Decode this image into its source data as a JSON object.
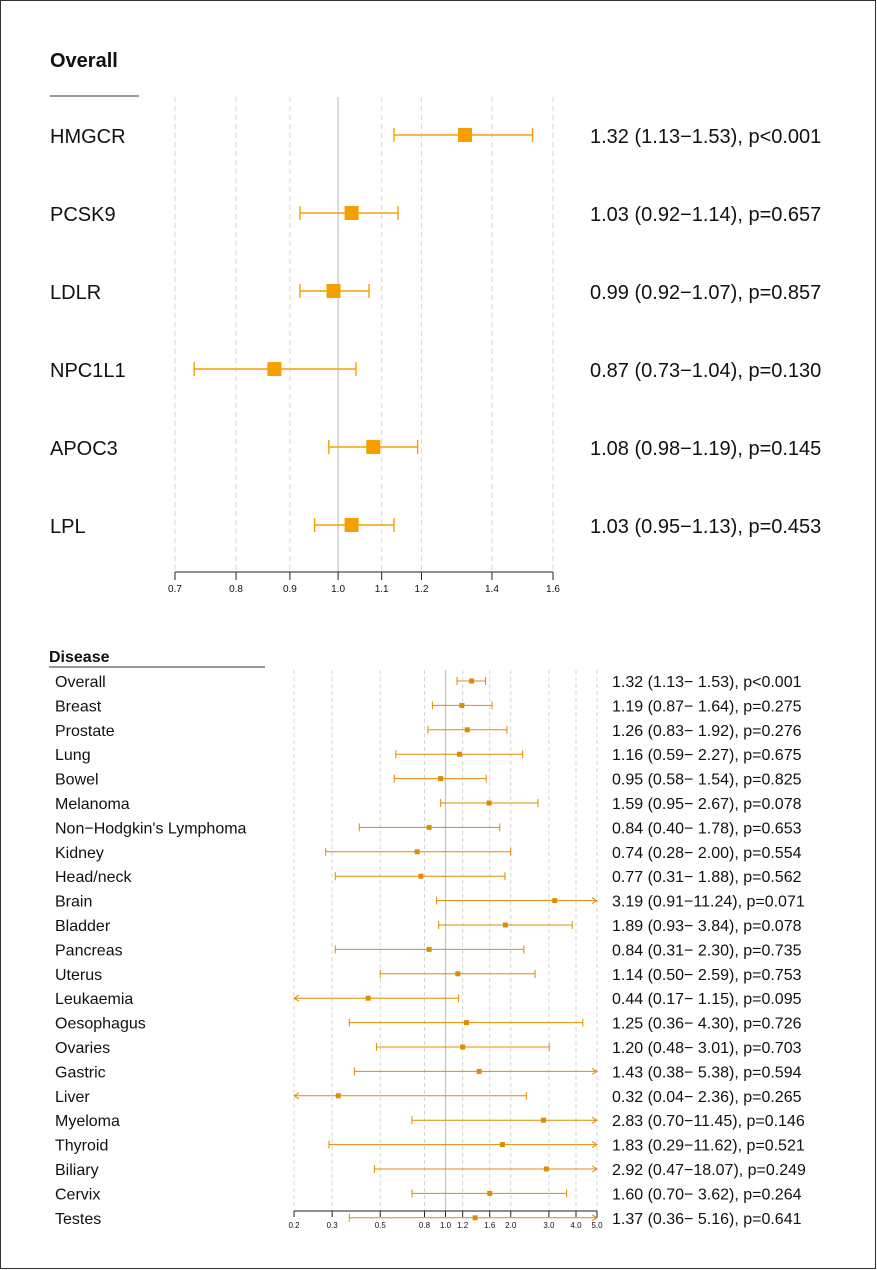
{
  "chart_data": [
    {
      "type": "forest",
      "title": "Overall",
      "scale": "log",
      "xlim": [
        0.7,
        1.6
      ],
      "ticks": [
        0.7,
        0.8,
        0.9,
        1.0,
        1.1,
        1.2,
        1.4,
        1.6
      ],
      "tick_labels": [
        "0.7",
        "0.8",
        "0.9",
        "1.0",
        "1.1",
        "1.2",
        "1.4",
        "1.6"
      ],
      "reference_line": 1.0,
      "marker_color": "#f5a000",
      "rows": [
        {
          "label": "HMGCR",
          "est": 1.32,
          "lo": 1.13,
          "hi": 1.53,
          "text": "1.32 (1.13−1.53), p<0.001"
        },
        {
          "label": "PCSK9",
          "est": 1.03,
          "lo": 0.92,
          "hi": 1.14,
          "text": "1.03 (0.92−1.14), p=0.657"
        },
        {
          "label": "LDLR",
          "est": 0.99,
          "lo": 0.92,
          "hi": 1.07,
          "text": "0.99 (0.92−1.07), p=0.857"
        },
        {
          "label": "NPC1L1",
          "est": 0.87,
          "lo": 0.73,
          "hi": 1.04,
          "text": "0.87 (0.73−1.04), p=0.130"
        },
        {
          "label": "APOC3",
          "est": 1.08,
          "lo": 0.98,
          "hi": 1.19,
          "text": "1.08 (0.98−1.19), p=0.145"
        },
        {
          "label": "LPL",
          "est": 1.03,
          "lo": 0.95,
          "hi": 1.13,
          "text": "1.03 (0.95−1.13), p=0.453"
        }
      ]
    },
    {
      "type": "forest",
      "title": "Disease",
      "scale": "log",
      "xlim": [
        0.2,
        5.0
      ],
      "ticks": [
        0.2,
        0.3,
        0.5,
        0.8,
        1.0,
        1.2,
        1.6,
        2.0,
        3.0,
        4.0,
        5.0
      ],
      "tick_labels": [
        "0.2",
        "0.3",
        "0.5",
        "0.8",
        "1.0",
        "1.2",
        "1.6",
        "2.0",
        "3.0",
        "4.0",
        "5.0"
      ],
      "reference_line": 1.0,
      "marker_color": "#e08c00",
      "rows": [
        {
          "label": "Overall",
          "est": 1.32,
          "lo": 1.13,
          "hi": 1.53,
          "text": "1.32 (1.13− 1.53), p<0.001"
        },
        {
          "label": "Breast",
          "est": 1.19,
          "lo": 0.87,
          "hi": 1.64,
          "text": "1.19 (0.87− 1.64), p=0.275"
        },
        {
          "label": "Prostate",
          "est": 1.26,
          "lo": 0.83,
          "hi": 1.92,
          "text": "1.26 (0.83− 1.92), p=0.276"
        },
        {
          "label": "Lung",
          "est": 1.16,
          "lo": 0.59,
          "hi": 2.27,
          "text": "1.16 (0.59− 2.27), p=0.675"
        },
        {
          "label": "Bowel",
          "est": 0.95,
          "lo": 0.58,
          "hi": 1.54,
          "text": "0.95 (0.58− 1.54), p=0.825"
        },
        {
          "label": "Melanoma",
          "est": 1.59,
          "lo": 0.95,
          "hi": 2.67,
          "text": "1.59 (0.95− 2.67), p=0.078"
        },
        {
          "label": "Non−Hodgkin's Lymphoma",
          "est": 0.84,
          "lo": 0.4,
          "hi": 1.78,
          "text": "0.84 (0.40− 1.78), p=0.653"
        },
        {
          "label": "Kidney",
          "est": 0.74,
          "lo": 0.28,
          "hi": 2.0,
          "text": "0.74 (0.28− 2.00), p=0.554"
        },
        {
          "label": "Head/neck",
          "est": 0.77,
          "lo": 0.31,
          "hi": 1.88,
          "text": "0.77 (0.31− 1.88), p=0.562"
        },
        {
          "label": "Brain",
          "est": 3.19,
          "lo": 0.91,
          "hi": 11.24,
          "text": "3.19 (0.91−11.24), p=0.071"
        },
        {
          "label": "Bladder",
          "est": 1.89,
          "lo": 0.93,
          "hi": 3.84,
          "text": "1.89 (0.93− 3.84), p=0.078"
        },
        {
          "label": "Pancreas",
          "est": 0.84,
          "lo": 0.31,
          "hi": 2.3,
          "text": "0.84 (0.31− 2.30), p=0.735"
        },
        {
          "label": "Uterus",
          "est": 1.14,
          "lo": 0.5,
          "hi": 2.59,
          "text": "1.14 (0.50− 2.59), p=0.753"
        },
        {
          "label": "Leukaemia",
          "est": 0.44,
          "lo": 0.17,
          "hi": 1.15,
          "text": "0.44 (0.17− 1.15), p=0.095"
        },
        {
          "label": "Oesophagus",
          "est": 1.25,
          "lo": 0.36,
          "hi": 4.3,
          "text": "1.25 (0.36− 4.30), p=0.726"
        },
        {
          "label": "Ovaries",
          "est": 1.2,
          "lo": 0.48,
          "hi": 3.01,
          "text": "1.20 (0.48− 3.01), p=0.703"
        },
        {
          "label": "Gastric",
          "est": 1.43,
          "lo": 0.38,
          "hi": 5.38,
          "text": "1.43 (0.38− 5.38), p=0.594"
        },
        {
          "label": "Liver",
          "est": 0.32,
          "lo": 0.04,
          "hi": 2.36,
          "text": "0.32 (0.04− 2.36), p=0.265"
        },
        {
          "label": "Myeloma",
          "est": 2.83,
          "lo": 0.7,
          "hi": 11.45,
          "text": "2.83 (0.70−11.45), p=0.146"
        },
        {
          "label": "Thyroid",
          "est": 1.83,
          "lo": 0.29,
          "hi": 11.62,
          "text": "1.83 (0.29−11.62), p=0.521"
        },
        {
          "label": "Biliary",
          "est": 2.92,
          "lo": 0.47,
          "hi": 18.07,
          "text": "2.92 (0.47−18.07), p=0.249"
        },
        {
          "label": "Cervix",
          "est": 1.6,
          "lo": 0.7,
          "hi": 3.62,
          "text": "1.60 (0.70− 3.62), p=0.264"
        },
        {
          "label": "Testes",
          "est": 1.37,
          "lo": 0.36,
          "hi": 5.16,
          "text": "1.37 (0.36− 5.16), p=0.641"
        }
      ]
    }
  ]
}
